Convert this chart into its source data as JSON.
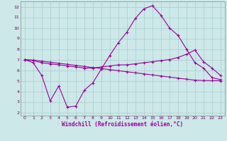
{
  "xlabel": "Windchill (Refroidissement éolien,°C)",
  "bg_color": "#cce8e8",
  "grid_color": "#aacccc",
  "line_color": "#990099",
  "x_ticks": [
    0,
    1,
    2,
    3,
    4,
    5,
    6,
    7,
    8,
    9,
    10,
    11,
    12,
    13,
    14,
    15,
    16,
    17,
    18,
    19,
    20,
    21,
    22,
    23
  ],
  "y_ticks": [
    2,
    3,
    4,
    5,
    6,
    7,
    8,
    9,
    10,
    11,
    12
  ],
  "ylim": [
    1.7,
    12.5
  ],
  "xlim": [
    -0.5,
    23.5
  ],
  "line1_x": [
    0,
    1,
    2,
    3,
    4,
    5,
    6,
    7,
    8,
    9,
    10,
    11,
    12,
    13,
    14,
    15,
    16,
    17,
    18,
    19,
    20,
    21,
    22,
    23
  ],
  "line1_y": [
    7.0,
    6.7,
    5.5,
    3.1,
    4.5,
    2.5,
    2.6,
    4.1,
    4.8,
    6.1,
    7.4,
    8.6,
    9.6,
    10.9,
    11.8,
    12.1,
    11.2,
    10.0,
    9.3,
    8.0,
    6.7,
    6.2,
    5.3,
    5.1
  ],
  "line2_x": [
    0,
    1,
    2,
    3,
    4,
    5,
    6,
    7,
    8,
    9,
    10,
    11,
    12,
    13,
    14,
    15,
    16,
    17,
    18,
    19,
    20,
    21,
    22,
    23
  ],
  "line2_y": [
    7.0,
    6.9,
    6.7,
    6.6,
    6.5,
    6.4,
    6.3,
    6.2,
    6.2,
    6.3,
    6.4,
    6.5,
    6.5,
    6.6,
    6.7,
    6.8,
    6.9,
    7.0,
    7.2,
    7.5,
    7.9,
    6.8,
    6.2,
    5.5
  ],
  "line3_x": [
    0,
    1,
    2,
    3,
    4,
    5,
    6,
    7,
    8,
    9,
    10,
    11,
    12,
    13,
    14,
    15,
    16,
    17,
    18,
    19,
    20,
    21,
    22,
    23
  ],
  "line3_y": [
    7.0,
    6.95,
    6.85,
    6.75,
    6.65,
    6.55,
    6.45,
    6.35,
    6.25,
    6.15,
    6.05,
    5.95,
    5.85,
    5.75,
    5.65,
    5.55,
    5.45,
    5.35,
    5.25,
    5.15,
    5.05,
    5.02,
    5.01,
    5.0
  ]
}
